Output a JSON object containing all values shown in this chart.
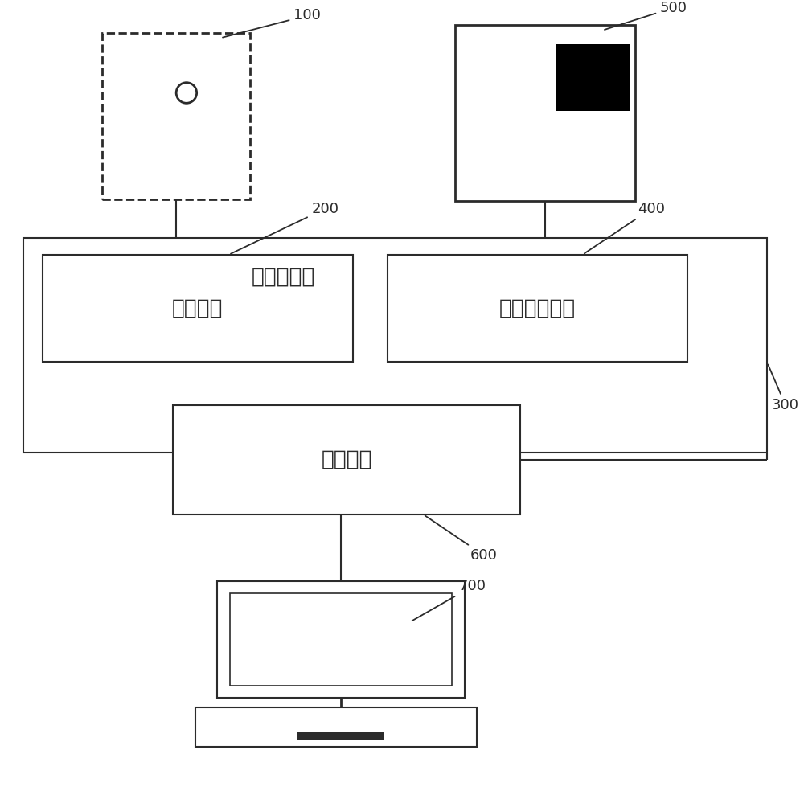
{
  "bg_color": "#ffffff",
  "line_color": "#2b2b2b",
  "label_100": "100",
  "label_200": "200",
  "label_300": "300",
  "label_400": "400",
  "label_500": "500",
  "label_600": "600",
  "label_700": "700",
  "text_vnic": "虚拟网卡",
  "text_vnet": "虚拟网络接口",
  "text_vswitch": "虚拟交换机",
  "text_pnic": "物理网卡",
  "font_size_label": 13,
  "font_size_box": 19,
  "font_size_switch": 19
}
